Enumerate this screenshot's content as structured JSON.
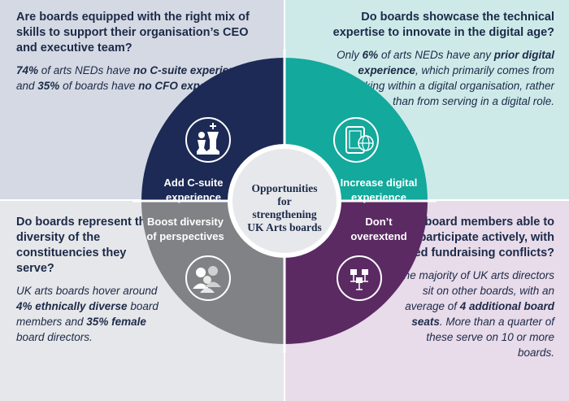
{
  "quadrants": {
    "top_left": {
      "title": "Are boards equipped with the right mix of skills to support their organisation’s CEO and executive team?",
      "body": {
        "hl1": "74%",
        "t1": " of arts NEDs have ",
        "hl2": "no C-suite experience",
        "t2": " and ",
        "hl3": "35%",
        "t3": " of boards have ",
        "hl4": "no CFO experience.",
        "t4": ""
      }
    },
    "top_right": {
      "title": "Do boards showcase the technical expertise to innovate in the digital age?",
      "body": {
        "t0": "Only ",
        "hl1": "6%",
        "t1": " of arts NEDs have any ",
        "hl2": "prior digital experience",
        "t2": ", which primarily comes from working within a digital organisation, rather than from serving in a digital role."
      }
    },
    "bottom_left": {
      "title": "Do boards represent the diversity of the constituencies they serve?",
      "body": {
        "t0": "UK arts boards hover around ",
        "hl1": "4% ethnically diverse",
        "t1": " board members and ",
        "hl2": "35% female",
        "t2": " board directors."
      }
    },
    "bottom_right": {
      "title": "Are board members able to participate actively, with limited fundraising conflicts?",
      "body": {
        "t0": "The majority of UK arts directors sit on other boards, with an average of ",
        "hl1": "4 additional board seats",
        "t1": ". More than a quarter of these serve on 10 or more boards."
      }
    }
  },
  "segments": {
    "top_left": {
      "line1": "Add C-suite",
      "line2": "experience",
      "icon": "chess-pieces-icon",
      "color": "#1c2a55"
    },
    "top_right": {
      "line1": "Increase digital",
      "line2": "experience",
      "icon": "tablet-globe-icon",
      "color": "#13a99c"
    },
    "bottom_left": {
      "line1": "Boost diversity",
      "line2": "of perspectives",
      "icon": "diverse-people-icon",
      "color": "#808285"
    },
    "bottom_right": {
      "line1": "Don’t",
      "line2": "overextend",
      "icon": "meeting-chairs-icon",
      "color": "#5b2a63"
    }
  },
  "center": {
    "line1": "Opportunities",
    "line2": "for",
    "line3": "strengthening",
    "line4": "UK Arts boards"
  }
}
